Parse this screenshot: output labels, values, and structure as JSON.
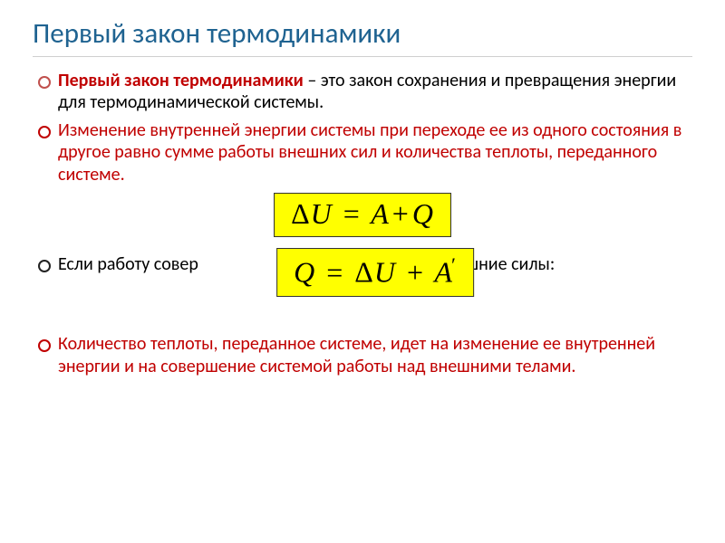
{
  "colors": {
    "title": "#1f6391",
    "bullet1_term": "#c00000",
    "bullet1_text": "#000000",
    "bullet2": "#c00000",
    "bullet3": "#000000",
    "bullet4": "#c00000",
    "bullet_marker1": "#c0504d",
    "bullet_marker2": "#c00000",
    "bullet_marker3": "#222222",
    "bullet_marker4": "#c00000",
    "formula_bg": "#ffff00",
    "formula_border": "#333333"
  },
  "typography": {
    "title_fontsize": 31,
    "body_fontsize": 20,
    "formula_fontsize": 32,
    "title_weight": 400
  },
  "title": "Первый закон термодинамики",
  "bullets": {
    "b1_term": "Первый закон термодинамики",
    "b1_rest": " – это закон сохранения и превращения  энергии для термодинамической системы.",
    "b2": "Изменение внутренней энергии системы при переходе ее из одного состояния в другое равно сумме работы внешних сил и количества теплоты, переданного системе.",
    "b3_left": "Если работу совер",
    "b3_right": "е внешние силы:",
    "b4": "Количество теплоты, переданное системе, идет на изменение ее внутренней энергии и на совершение системой работы над внешними телами."
  },
  "formulas": {
    "f1": {
      "lhs_delta": "Δ",
      "lhs_var": "U",
      "eq": "=",
      "r1": "A",
      "plus": "+",
      "r2": "Q"
    },
    "f2": {
      "l": "Q",
      "eq": "=",
      "delta": "Δ",
      "u": "U",
      "plus": "+",
      "a": "A",
      "prime": "′"
    }
  }
}
